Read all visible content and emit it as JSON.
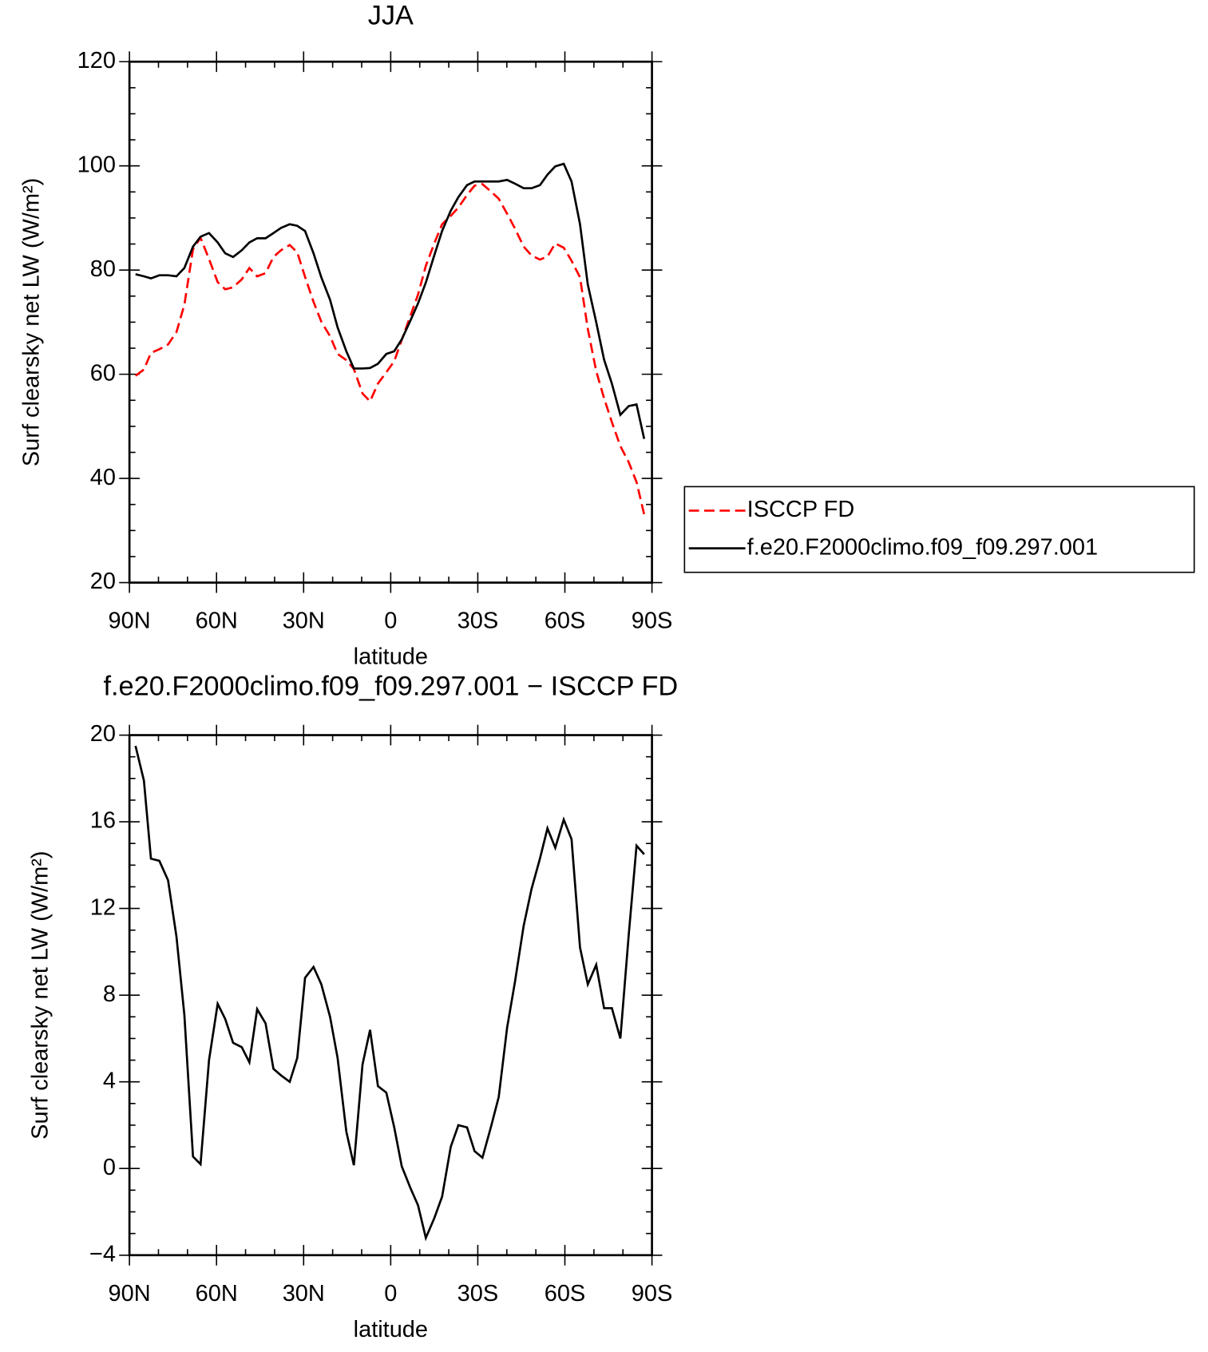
{
  "chart_data": [
    {
      "type": "line",
      "title": "JJA",
      "xlabel": "latitude",
      "ylabel": "Surf clearsky net LW (W/m²)",
      "xlim": [
        90,
        -90
      ],
      "xticks": [
        {
          "value": 90,
          "label": "90N"
        },
        {
          "value": 60,
          "label": "60N"
        },
        {
          "value": 30,
          "label": "30N"
        },
        0,
        {
          "value": -30,
          "label": "30S"
        },
        {
          "value": -60,
          "label": "60S"
        },
        {
          "value": -90,
          "label": "90S"
        }
      ],
      "ylim": [
        20,
        120
      ],
      "yticks": [
        20,
        40,
        60,
        80,
        100,
        120
      ],
      "legend": "right",
      "x": [
        87.9,
        85.0,
        82.6,
        79.7,
        76.7,
        73.8,
        71.1,
        68.1,
        65.5,
        62.6,
        59.6,
        57.0,
        54.3,
        51.3,
        48.7,
        46.0,
        43.1,
        40.4,
        37.8,
        34.8,
        32.2,
        29.5,
        26.6,
        23.9,
        20.9,
        18.3,
        15.3,
        12.7,
        9.7,
        7.1,
        4.4,
        1.5,
        -1.2,
        -3.8,
        -6.8,
        -9.4,
        -12.1,
        -15.0,
        -17.7,
        -20.7,
        -23.3,
        -26.3,
        -28.9,
        -31.6,
        -34.5,
        -37.2,
        -40.1,
        -42.8,
        -45.8,
        -48.5,
        -51.4,
        -54.0,
        -56.7,
        -59.6,
        -62.3,
        -65.2,
        -67.9,
        -70.8,
        -73.5,
        -76.2,
        -79.1,
        -82.0,
        -84.7,
        -87.3
      ],
      "series": [
        {
          "name": "ISCCP FD",
          "color": "#ff0000",
          "dash": true,
          "values": [
            59.7,
            60.9,
            64.1,
            64.8,
            65.7,
            68.1,
            73.3,
            84.0,
            86.2,
            82.1,
            77.7,
            76.3,
            76.7,
            78.2,
            80.4,
            78.8,
            79.4,
            82.5,
            83.8,
            84.8,
            83.4,
            78.7,
            73.9,
            70.1,
            67.3,
            63.9,
            62.7,
            61.0,
            56.3,
            54.8,
            58.2,
            60.4,
            62.5,
            66.6,
            71.2,
            75.3,
            80.8,
            85.1,
            88.8,
            90.4,
            92.0,
            94.4,
            96.2,
            96.5,
            95.1,
            93.7,
            90.8,
            88.0,
            84.5,
            82.8,
            82.0,
            82.6,
            85.1,
            84.3,
            81.8,
            78.6,
            68.7,
            60.6,
            55.4,
            50.8,
            46.2,
            43.1,
            39.3,
            33.1
          ]
        },
        {
          "name": "f.e20.F2000climo.f09_f09.297.001",
          "color": "#000000",
          "dash": false,
          "values": [
            79.2,
            78.8,
            78.4,
            79.0,
            79.0,
            78.8,
            80.4,
            84.5,
            86.4,
            87.1,
            85.3,
            83.2,
            82.5,
            83.8,
            85.3,
            86.1,
            86.1,
            87.1,
            88.1,
            88.8,
            88.5,
            87.5,
            83.2,
            78.6,
            74.3,
            69.0,
            64.4,
            61.1,
            61.1,
            61.2,
            62.0,
            63.9,
            64.4,
            66.7,
            70.3,
            73.6,
            77.6,
            82.8,
            87.5,
            91.4,
            94.0,
            96.3,
            97.0,
            97.0,
            97.0,
            97.0,
            97.3,
            96.6,
            95.7,
            95.7,
            96.3,
            98.3,
            99.9,
            100.4,
            97.0,
            88.8,
            77.2,
            70.0,
            62.8,
            58.2,
            52.2,
            53.9,
            54.2,
            47.6
          ]
        }
      ]
    },
    {
      "type": "line",
      "title": "f.e20.F2000climo.f09_f09.297.001 − ISCCP FD",
      "xlabel": "latitude",
      "ylabel": "Surf clearsky net LW (W/m²)",
      "xlim": [
        90,
        -90
      ],
      "xticks": [
        {
          "value": 90,
          "label": "90N"
        },
        {
          "value": 60,
          "label": "60N"
        },
        {
          "value": 30,
          "label": "30N"
        },
        0,
        {
          "value": -30,
          "label": "30S"
        },
        {
          "value": -60,
          "label": "60S"
        },
        {
          "value": -90,
          "label": "90S"
        }
      ],
      "ylim": [
        -4,
        20
      ],
      "yticks": [
        {
          "value": -4,
          "label": "−4"
        },
        0,
        4,
        8,
        12,
        16,
        20
      ],
      "x": [
        87.9,
        85.0,
        82.6,
        79.7,
        76.7,
        73.8,
        71.1,
        68.1,
        65.5,
        62.6,
        59.6,
        57.0,
        54.3,
        51.3,
        48.7,
        46.0,
        43.1,
        40.4,
        37.8,
        34.8,
        32.2,
        29.5,
        26.6,
        23.9,
        20.9,
        18.3,
        15.3,
        12.7,
        9.7,
        7.1,
        4.4,
        1.5,
        -1.2,
        -3.8,
        -6.8,
        -9.4,
        -12.1,
        -15.0,
        -17.7,
        -20.7,
        -23.3,
        -26.3,
        -28.9,
        -31.6,
        -34.5,
        -37.2,
        -40.1,
        -42.8,
        -45.8,
        -48.5,
        -51.4,
        -54.0,
        -56.7,
        -59.6,
        -62.3,
        -65.2,
        -67.9,
        -70.8,
        -73.5,
        -76.2,
        -79.1,
        -82.0,
        -84.7,
        -87.3
      ],
      "series": [
        {
          "color": "#000000",
          "dash": false,
          "values": [
            19.5,
            17.9,
            14.3,
            14.2,
            13.3,
            10.7,
            7.1,
            0.55,
            0.2,
            5.0,
            7.6,
            6.9,
            5.8,
            5.6,
            4.9,
            7.35,
            6.7,
            4.6,
            4.3,
            4.0,
            5.1,
            8.8,
            9.3,
            8.5,
            7.0,
            5.1,
            1.7,
            0.15,
            4.8,
            6.4,
            3.8,
            3.5,
            1.9,
            0.1,
            -0.9,
            -1.7,
            -3.2,
            -2.3,
            -1.3,
            1.0,
            2.0,
            1.9,
            0.8,
            0.5,
            1.9,
            3.3,
            6.5,
            8.6,
            11.2,
            12.9,
            14.3,
            15.7,
            14.8,
            16.1,
            15.2,
            10.2,
            8.5,
            9.4,
            7.4,
            7.4,
            6.0,
            10.8,
            14.9,
            14.5
          ]
        }
      ]
    }
  ]
}
